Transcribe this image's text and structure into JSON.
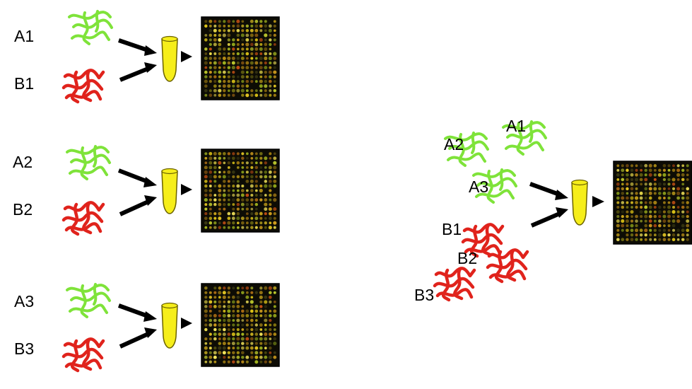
{
  "colors": {
    "background": "#ffffff",
    "sample_a_strand": "#7fe33a",
    "sample_b_strand": "#e0231c",
    "tube_fill": "#f6ee1a",
    "tube_stroke": "#6b6200",
    "arrow": "#000000",
    "microarray_background": "#0d0c05",
    "spot_palette": [
      "#c7a21a",
      "#b58d14",
      "#e1c423",
      "#9a7612",
      "#d9c017",
      "#7d6410",
      "#e7d84a",
      "#cf9b1d",
      "#6e6a12",
      "#a3b61f",
      "#8ea41a",
      "#f2e35a",
      "#c44f14",
      "#a86a14",
      "#3b3a14",
      "#b9c52c"
    ]
  },
  "left_experiments": [
    {
      "sample_a_label": "A1",
      "sample_b_label": "B1"
    },
    {
      "sample_a_label": "A2",
      "sample_b_label": "B2"
    },
    {
      "sample_a_label": "A3",
      "sample_b_label": "B3"
    }
  ],
  "pooled_experiment": {
    "sample_labels": [
      "A1",
      "A2",
      "A3",
      "B1",
      "B2",
      "B3"
    ]
  },
  "icons": {
    "strand": "dna-strand-icon",
    "tube": "test-tube-icon",
    "arrow": "arrow-icon",
    "microarray": "microarray-chip-icon"
  }
}
